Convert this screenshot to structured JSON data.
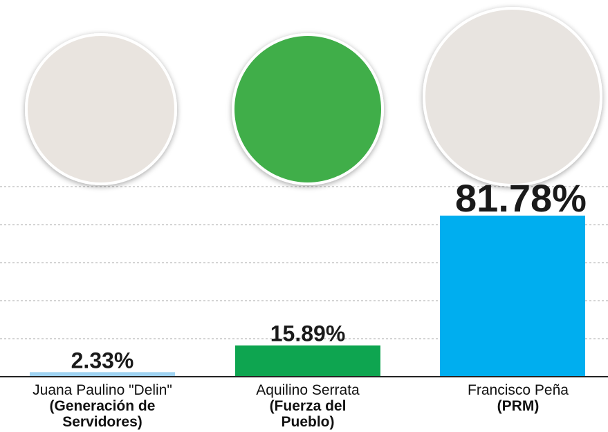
{
  "chart_data": {
    "type": "bar",
    "categories": [
      "Juana Paulino \"Delin\"",
      "Aquilino Serrata",
      "Francisco Peña"
    ],
    "parties": [
      "(Generación de Servidores)",
      "(Fuerza del Pueblo)",
      "(PRM)"
    ],
    "values": [
      2.33,
      15.89,
      81.78
    ],
    "value_labels": [
      "2.33%",
      "15.89%",
      "81.78%"
    ],
    "colors": [
      "#9fd3f2",
      "#0ea550",
      "#00aeef"
    ],
    "ylim": [
      0,
      100
    ]
  }
}
